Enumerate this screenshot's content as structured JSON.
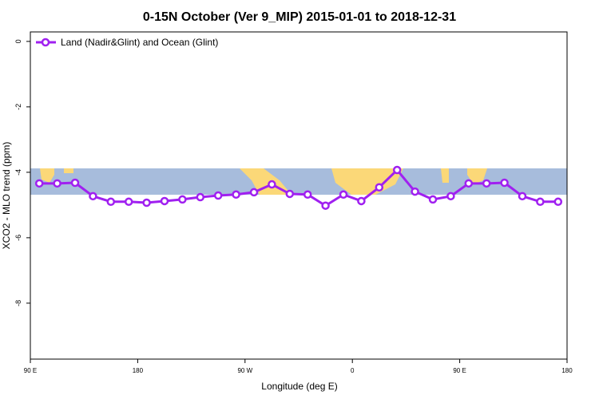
{
  "chart_data": {
    "type": "line",
    "title": "0-15N October (Ver 9_MIP)   2015-01-01 to 2018-12-31",
    "x_label": "Longitude (deg E)",
    "y_label": "XCO2 - MLO trend (ppm)",
    "x": [
      97.5,
      112.5,
      127.5,
      142.5,
      157.5,
      172.5,
      187.5,
      202.5,
      217.5,
      232.5,
      247.5,
      262.5,
      277.5,
      292.5,
      307.5,
      322.5,
      337.5,
      352.5,
      367.5,
      382.5,
      397.5,
      412.5,
      427.5,
      442.5,
      457.5,
      472.5,
      487.5,
      502.5,
      517.5,
      532.5
    ],
    "series": [
      {
        "name": "Land (Nadir&Glint) and Ocean (Glint)",
        "color": "#a020f0",
        "values": [
          -4.34,
          -4.34,
          -4.32,
          -4.73,
          -4.9,
          -4.9,
          -4.93,
          -4.88,
          -4.83,
          -4.76,
          -4.71,
          -4.68,
          -4.61,
          -4.37,
          -4.66,
          -4.68,
          -5.02,
          -4.68,
          -4.88,
          -4.46,
          -3.93,
          -4.59,
          -4.83,
          -4.73,
          -4.34,
          -4.34,
          -4.32,
          -4.73,
          -4.9,
          -4.9
        ]
      }
    ],
    "xlim": [
      90,
      540
    ],
    "xticks": [
      {
        "value": 90,
        "label": "90 E"
      },
      {
        "value": 180,
        "label": "180"
      },
      {
        "value": 270,
        "label": "90 W"
      },
      {
        "value": 360,
        "label": "0"
      },
      {
        "value": 450,
        "label": "90 E"
      },
      {
        "value": 540,
        "label": "180"
      }
    ],
    "ylim": [
      -9.71,
      0.29
    ],
    "yticks": [
      0,
      -2,
      -4,
      -6,
      -8
    ],
    "legend": "top-left"
  }
}
